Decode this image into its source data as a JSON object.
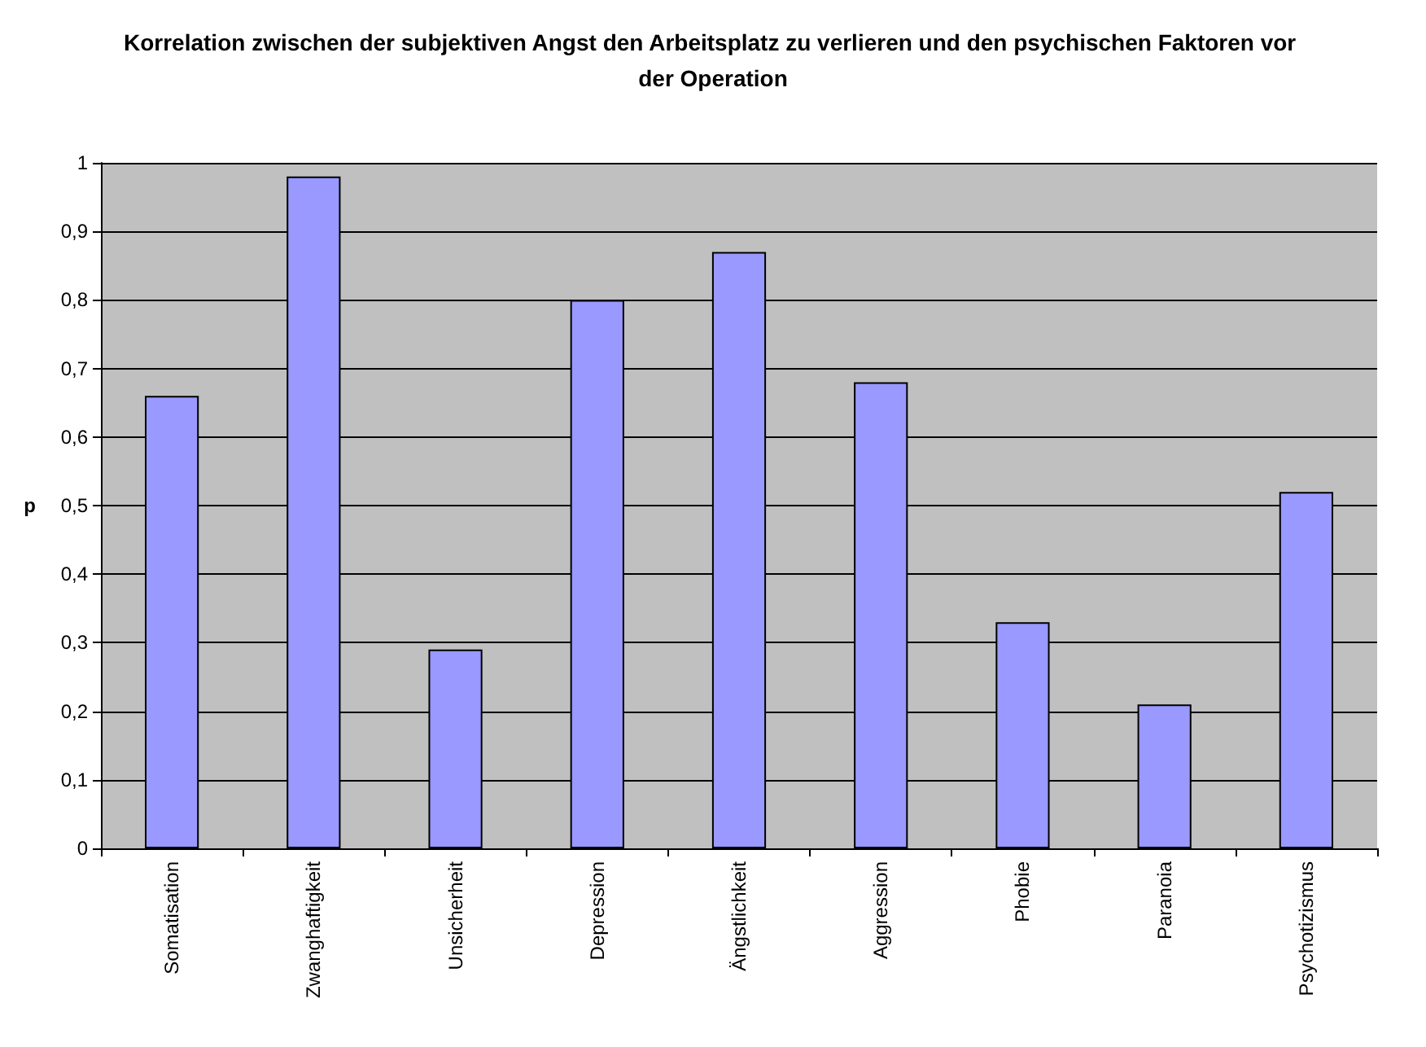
{
  "chart_data": {
    "type": "bar",
    "title": "Korrelation zwischen der subjektiven Angst den Arbeitsplatz zu verlieren und den psychischen Faktoren vor der Operation",
    "ylabel": "p",
    "categories": [
      "Somatisation",
      "Zwanghaftigkeit",
      "Unsicherheit",
      "Depression",
      "Ängstlichkeit",
      "Aggression",
      "Phobie",
      "Paranoia",
      "Psychotizismus"
    ],
    "values": [
      0.66,
      0.98,
      0.29,
      0.8,
      0.87,
      0.68,
      0.33,
      0.21,
      0.52
    ],
    "color": "#9999ff",
    "ylim": [
      0,
      1
    ],
    "yticks": [
      0,
      {
        "value": 0.1,
        "label": "0,1"
      },
      {
        "value": 0.2,
        "label": "0,2"
      },
      {
        "value": 0.3,
        "label": "0,3"
      },
      {
        "value": 0.4,
        "label": "0,4"
      },
      {
        "value": 0.5,
        "label": "0,5"
      },
      {
        "value": 0.6,
        "label": "0,6"
      },
      {
        "value": 0.7,
        "label": "0,7"
      },
      {
        "value": 0.8,
        "label": "0,8"
      },
      {
        "value": 0.9,
        "label": "0,9"
      },
      1
    ],
    "grid": "y"
  }
}
